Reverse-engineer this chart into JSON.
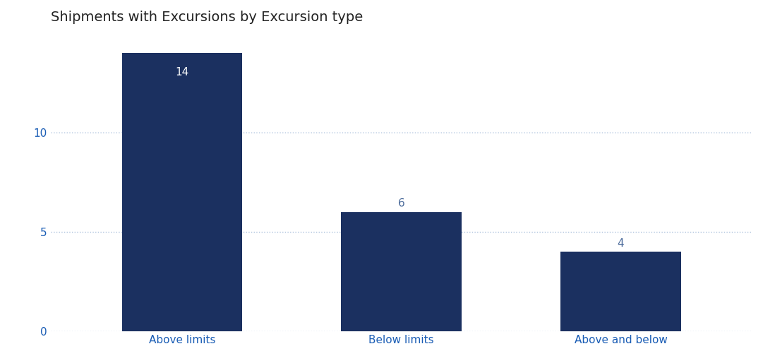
{
  "categories": [
    "Above limits",
    "Below limits",
    "Above and below"
  ],
  "values": [
    14,
    6,
    4
  ],
  "bar_color": "#1b3060",
  "label_color_inside": "#ffffff",
  "label_color_outside": "#4a6a9a",
  "title": "Shipments with Excursions by Excursion type",
  "title_fontsize": 14,
  "title_color": "#222222",
  "ylim": [
    0,
    15
  ],
  "yticks": [
    0,
    5,
    10
  ],
  "bar_width": 0.55,
  "background_color": "#ffffff",
  "grid_color": "#b0c4de",
  "tick_label_color": "#1a5db5",
  "value_label_fontsize": 11,
  "axis_label_fontsize": 11,
  "xlim": [
    -0.6,
    2.6
  ]
}
